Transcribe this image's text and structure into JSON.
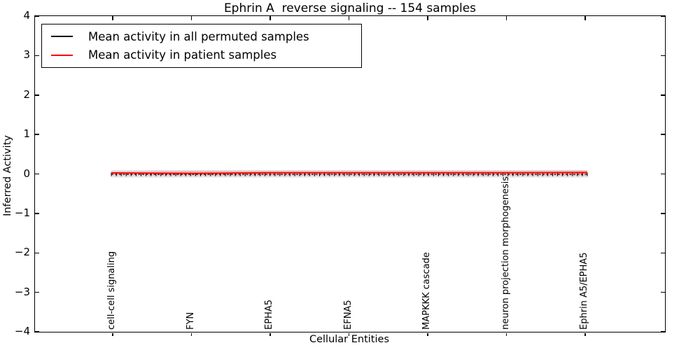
{
  "chart_data": {
    "type": "line",
    "title": "Ephrin A  reverse signaling -- 154 samples",
    "xlabel": "Cellular Entities",
    "ylabel": "Inferred Activity",
    "ylim": [
      -4,
      4
    ],
    "grid": false,
    "legend_position": "upper left",
    "y_ticks": [
      4,
      3,
      2,
      1,
      0,
      -1,
      -2,
      -3,
      -4
    ],
    "y_tick_labels": [
      "4",
      "3",
      "2",
      "1",
      "0",
      "−1",
      "−2",
      "−3",
      "−4"
    ],
    "categories": [
      "cell-cell signaling",
      "FYN",
      "EPHA5",
      "EFNA5",
      "MAPKKK cascade",
      "neuron projection morphogenesis",
      "Ephrin A5/EPHA5"
    ],
    "marker_count": 97,
    "series": [
      {
        "name": "Mean activity in all permuted samples",
        "color": "#000000",
        "line_style": "dashed with plus markers",
        "values": [
          -0.01,
          -0.01,
          -0.01,
          -0.01,
          -0.01,
          -0.01,
          -0.01
        ],
        "band_upper": [
          0.1,
          0.1,
          0.1,
          0.1,
          0.1,
          0.1,
          0.1
        ],
        "band_lower": [
          -0.09,
          -0.09,
          -0.09,
          -0.09,
          -0.09,
          -0.09,
          -0.09
        ],
        "band_color": "rgba(0,0,0,0.10)"
      },
      {
        "name": "Mean activity in patient samples",
        "color": "#ff0000",
        "line_style": "solid",
        "values": [
          0.025,
          0.015,
          0.03,
          0.03,
          0.03,
          0.03,
          0.035
        ],
        "band_upper": [
          0.06,
          0.08,
          0.08,
          0.08,
          0.08,
          0.08,
          0.09
        ],
        "band_lower": [
          -0.03,
          -0.05,
          -0.045,
          -0.04,
          -0.04,
          -0.04,
          -0.045
        ],
        "band_color": "rgba(255,0,0,0.17)"
      }
    ]
  }
}
